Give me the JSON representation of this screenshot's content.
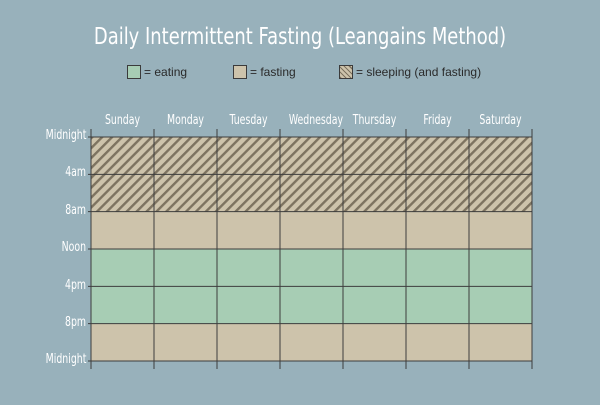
{
  "title": "Daily Intermittent Fasting (Leangains Method)",
  "legend": [
    {
      "label": "= eating",
      "fill": "#a7cdb4",
      "pattern": false
    },
    {
      "label": "= fasting",
      "fill": "#cdc3ab",
      "pattern": false
    },
    {
      "label": "= sleeping (and fasting)",
      "fill": "#cdc3ab",
      "pattern": true
    }
  ],
  "days": [
    "Sunday",
    "Monday",
    "Tuesday",
    "Wednesday",
    "Thursday",
    "Friday",
    "Saturday"
  ],
  "times": [
    "Midnight",
    "4am",
    "8am",
    "Noon",
    "4pm",
    "8pm",
    "Midnight"
  ],
  "schedule": [
    "sleeping",
    "sleeping",
    "fasting",
    "eating",
    "eating",
    "fasting"
  ],
  "colors": {
    "background": "#98b1bb",
    "eating": "#a7cdb4",
    "fasting": "#cdc3ab",
    "hatch": "#7d7360",
    "grid_line": "#3d3d3d",
    "text": "#ffffff"
  }
}
